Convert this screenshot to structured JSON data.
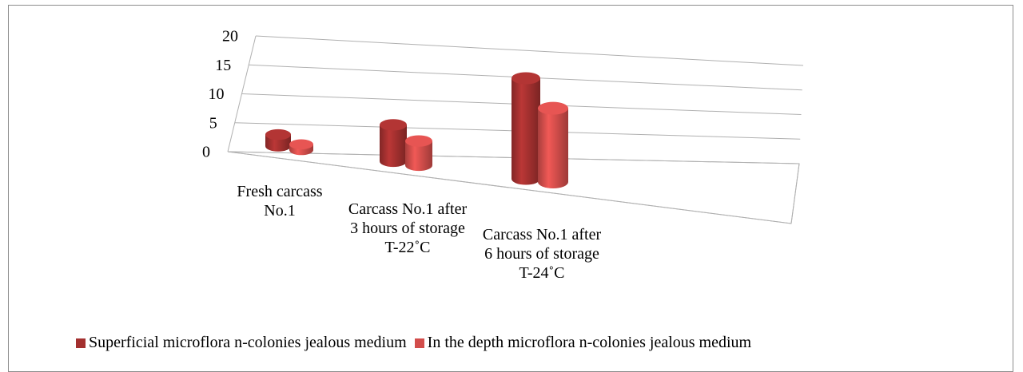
{
  "chart_data": {
    "type": "bar3d",
    "categories": [
      "Fresh carcass No.1",
      "Carcass No.1 after 3 hours of storage T-22˚C",
      "Carcass No.1 after 6 hours of storage T-24˚C"
    ],
    "series": [
      {
        "name": "Superficial microflora n-colonies jealous medium",
        "color": "#a3302f",
        "values": [
          2,
          6,
          15
        ]
      },
      {
        "name": "In the depth microflora n-colonies jealous medium",
        "color": "#d24d4b",
        "values": [
          1,
          4,
          11
        ]
      }
    ],
    "ylim": [
      0,
      20
    ],
    "yticks": [
      0,
      5,
      10,
      15,
      20
    ],
    "grid": true,
    "legend": "bottom"
  }
}
